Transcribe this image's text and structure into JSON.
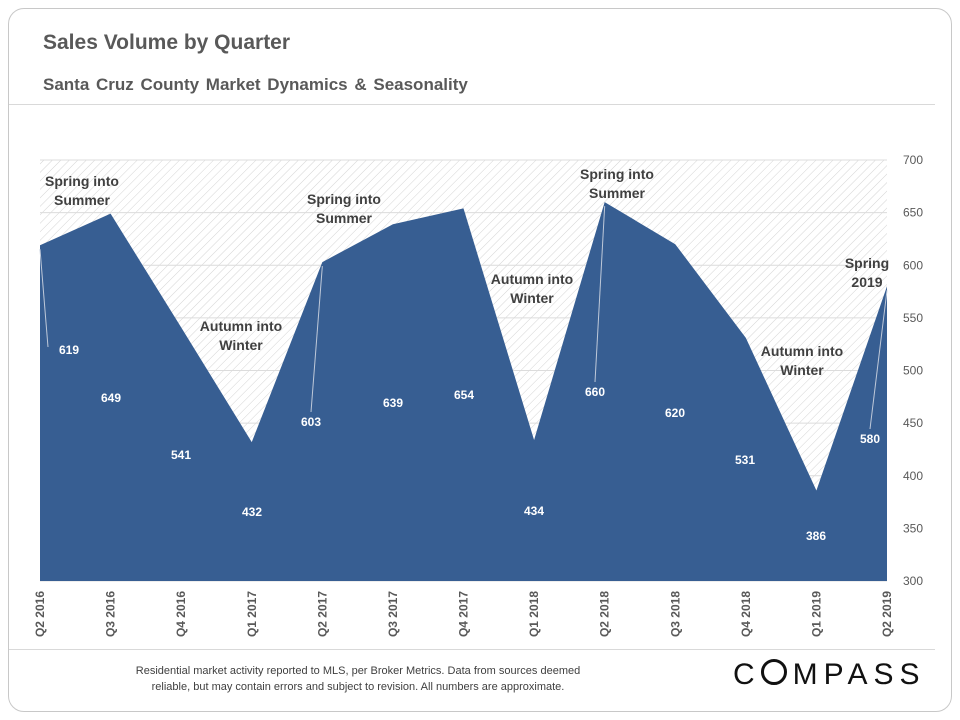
{
  "title": "Sales Volume by Quarter",
  "subtitle": "Santa Cruz County Market Dynamics & Seasonality",
  "footnote": {
    "line1": "Residential market activity reported to MLS, per Broker Metrics. Data from sources deemed",
    "line2": "reliable, but may contain errors and subject to revision. All numbers are approximate."
  },
  "logo": {
    "prefix": "C",
    "suffix": "MPASS"
  },
  "colors": {
    "area_fill": "#375e92",
    "hatch": "#c9c9c9",
    "grid": "#dcdcdc",
    "text": "#595959",
    "label_dark": "#404040",
    "data_label": "#ffffff"
  },
  "chart_data": {
    "type": "area",
    "categories": [
      "Q2 2016",
      "Q3 2016",
      "Q4 2016",
      "Q1 2017",
      "Q2 2017",
      "Q3 2017",
      "Q4 2017",
      "Q1 2018",
      "Q2 2018",
      "Q3 2018",
      "Q4 2018",
      "Q1 2019",
      "Q2 2019"
    ],
    "series": [
      {
        "values": [
          619,
          649,
          541,
          432,
          603,
          639,
          654,
          434,
          660,
          620,
          531,
          386,
          580
        ]
      }
    ],
    "ylim": [
      300,
      700
    ],
    "yticks": [
      300,
      350,
      400,
      450,
      500,
      550,
      600,
      650,
      700
    ],
    "y_axis_position": "right",
    "grid": true,
    "background_pattern": "diagonal-hatch",
    "annotations": [
      {
        "lines": [
          "Spring into",
          "Summer"
        ],
        "category": "Q2 2016"
      },
      {
        "lines": [
          "Autumn into",
          "Winter"
        ],
        "category": "Q1 2017"
      },
      {
        "lines": [
          "Spring into",
          "Summer"
        ],
        "category": "Q2 2017"
      },
      {
        "lines": [
          "Autumn into",
          "Winter"
        ],
        "category": "Q1 2018"
      },
      {
        "lines": [
          "Spring into",
          "Summer"
        ],
        "category": "Q2 2018"
      },
      {
        "lines": [
          "Autumn into",
          "Winter"
        ],
        "category": "Q1 2019"
      },
      {
        "lines": [
          "Spring",
          "2019"
        ],
        "category": "Q2 2019"
      }
    ]
  }
}
